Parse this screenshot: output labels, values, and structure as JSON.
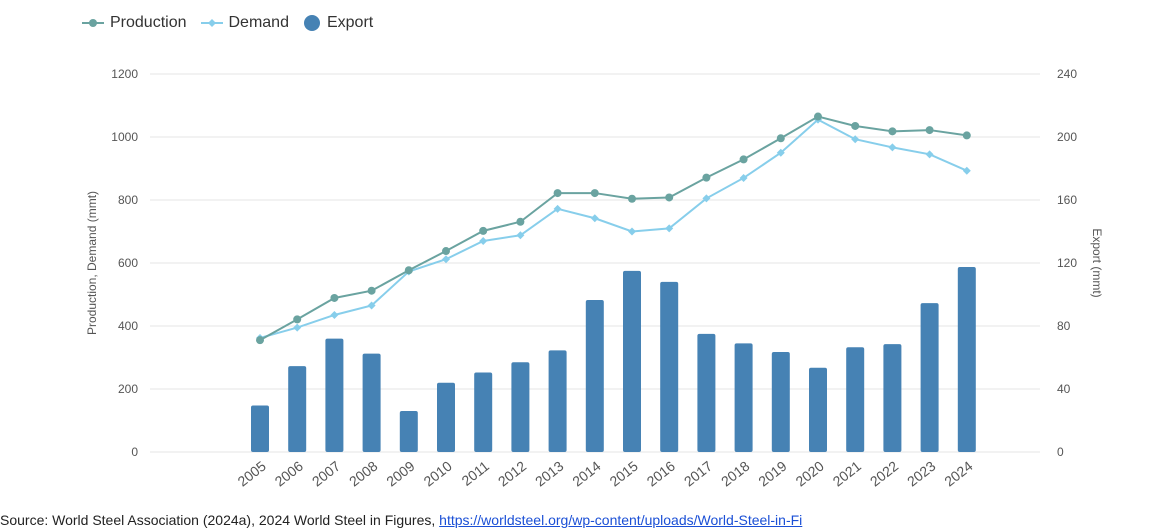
{
  "colors": {
    "production": "#6aa3a0",
    "demand": "#87ceeb",
    "export": "#4682b4",
    "grid": "#e6e6e6",
    "axis_text": "#555555",
    "link": "#1a4fd6"
  },
  "legend": {
    "production": "Production",
    "demand": "Demand",
    "export": "Export"
  },
  "source": {
    "prefix": "Source: World Steel Association (2024a), 2024 World Steel in Figures, ",
    "link_text": "https://worldsteel.org/wp-content/uploads/World-Steel-in-Fi"
  },
  "chart_data": {
    "type": "bar",
    "categories": [
      "2005",
      "2006",
      "2007",
      "2008",
      "2009",
      "2010",
      "2011",
      "2012",
      "2013",
      "2014",
      "2015",
      "2016",
      "2017",
      "2018",
      "2019",
      "2020",
      "2021",
      "2022",
      "2023",
      "2024"
    ],
    "series": [
      {
        "name": "Production",
        "type": "line",
        "axis": "left",
        "values": [
          355,
          421,
          489,
          512,
          577,
          638,
          702,
          731,
          822,
          822,
          804,
          808,
          871,
          929,
          996,
          1065,
          1035,
          1018,
          1022,
          1005
        ]
      },
      {
        "name": "Demand",
        "type": "line",
        "axis": "left",
        "values": [
          362,
          395,
          435,
          465,
          573,
          612,
          670,
          688,
          772,
          742,
          700,
          710,
          805,
          870,
          950,
          1055,
          993,
          967,
          945,
          893
        ]
      },
      {
        "name": "Export",
        "type": "bar",
        "axis": "right",
        "values": [
          29.5,
          54.5,
          72,
          62.5,
          26,
          44,
          50.5,
          57,
          64.5,
          96.5,
          115,
          108,
          75,
          69,
          63.5,
          53.5,
          66.5,
          68.5,
          94.5,
          117.5
        ]
      }
    ],
    "ylabel": "Production, Demand (mmt)",
    "y2label": "Export (mmt)",
    "ylim": [
      0,
      1200
    ],
    "y2lim": [
      0,
      240
    ],
    "yticks": [
      "0",
      "200",
      "400",
      "600",
      "800",
      "1000",
      "1200"
    ],
    "y2ticks": [
      "0",
      "40",
      "80",
      "120",
      "160",
      "200",
      "240"
    ],
    "grid": true,
    "legend_position": "top-left"
  }
}
